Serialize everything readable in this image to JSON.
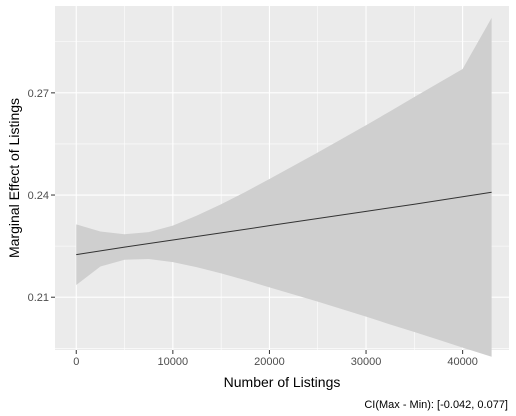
{
  "chart_data": {
    "type": "line",
    "title": "",
    "xlabel": "Number of Listings",
    "ylabel": "Marginal Effect of Listings",
    "caption": "CI(Max - Min): [-0.042, 0.077]",
    "xlim": [
      -2200,
      44800
    ],
    "ylim": [
      0.1945,
      0.2955
    ],
    "x_ticks": [
      0,
      10000,
      20000,
      30000,
      40000
    ],
    "x_tick_labels": [
      "0",
      "10000",
      "20000",
      "30000",
      "40000"
    ],
    "y_ticks": [
      0.21,
      0.24,
      0.27
    ],
    "y_tick_labels": [
      "0.21",
      "0.24",
      "0.27"
    ],
    "grid": true,
    "legend": "none",
    "colors": {
      "panel_background": "#ebebeb",
      "grid_major": "#ffffff",
      "ribbon": "#cfcfcf",
      "line": "#333333"
    },
    "series": [
      {
        "x": [
          0,
          5000,
          10000,
          15000,
          20000,
          25000,
          30000,
          35000,
          40000,
          43000
        ],
        "values": [
          0.2225,
          0.2247,
          0.2268,
          0.2289,
          0.231,
          0.2331,
          0.2352,
          0.2373,
          0.2395,
          0.2408
        ]
      }
    ],
    "confidence_band": {
      "x": [
        0,
        2500,
        5000,
        7500,
        10000,
        12500,
        15000,
        17500,
        20000,
        22500,
        25000,
        27500,
        30000,
        32500,
        35000,
        37500,
        40000,
        43000
      ],
      "upper": [
        0.2314,
        0.2293,
        0.2285,
        0.2291,
        0.231,
        0.234,
        0.2373,
        0.2409,
        0.2447,
        0.2486,
        0.2525,
        0.2565,
        0.2605,
        0.2646,
        0.2688,
        0.2729,
        0.277,
        0.292
      ],
      "lower": [
        0.2136,
        0.219,
        0.221,
        0.2212,
        0.2203,
        0.2188,
        0.217,
        0.215,
        0.2129,
        0.2108,
        0.2087,
        0.2065,
        0.2043,
        0.202,
        0.1998,
        0.1975,
        0.1952,
        0.1925
      ]
    }
  }
}
